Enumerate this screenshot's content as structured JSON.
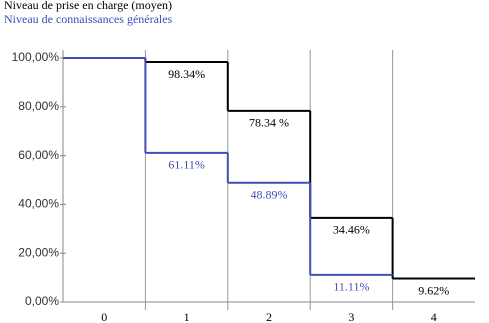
{
  "chart_data": {
    "type": "step",
    "categories": [
      "0",
      "1",
      "2",
      "3",
      "4"
    ],
    "series": [
      {
        "name": "Niveau de prise en charge (moyen)",
        "color": "#000000",
        "values": [
          100,
          98.34,
          78.34,
          34.46,
          9.62
        ],
        "value_labels": [
          null,
          "98.34%",
          "78.34 %",
          "34.46%",
          "9.62%"
        ]
      },
      {
        "name": "Niveau de connaissances générales",
        "color": "#3f4fb5",
        "values": [
          100,
          61.11,
          48.89,
          11.11,
          null
        ],
        "value_labels": [
          null,
          "61.11%",
          "48.89%",
          "11.11%",
          null
        ]
      }
    ],
    "ylim": [
      0,
      100
    ],
    "yticks": [
      {
        "value": 0,
        "label": "0,00%"
      },
      {
        "value": 20,
        "label": "20,00%"
      },
      {
        "value": 40,
        "label": "40,00%"
      },
      {
        "value": 60,
        "label": "60,00%"
      },
      {
        "value": 80,
        "label": "80,00%"
      },
      {
        "value": 100,
        "label": "100,00%"
      }
    ],
    "grid": true
  }
}
